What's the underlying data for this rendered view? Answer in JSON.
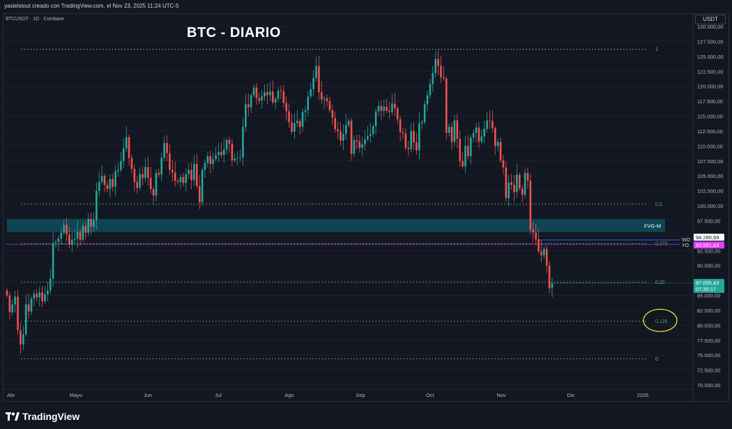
{
  "header": {
    "caption": "yasielstout creado con TradingView.com, el Nov 23, 2025 11:24 UTC-5"
  },
  "symbol": "BTCUSDT · 1D · Coinbase",
  "currency_button": "USDT",
  "brand": {
    "name": "TradingView",
    "icon": "tradingview-logo-icon"
  },
  "colors": {
    "up": "#26a69a",
    "down": "#ef5350",
    "fib": "#4caf50",
    "fvg": "#0f4c5c",
    "wo": "#2962ff",
    "yo": "#9c27b0"
  },
  "chart_data": {
    "type": "candlestick",
    "title": "BTC - DIARIO",
    "y_range": [
      70000,
      130000
    ],
    "y_ticks": [
      "70.000,00",
      "72.500,00",
      "75.000,00",
      "77.500,00",
      "80.000,00",
      "82.500,00",
      "85.000,00",
      "87.500,00",
      "90.000,00",
      "92.500,00",
      "95.000,00",
      "97.500,00",
      "100.000,00",
      "102.500,00",
      "105.000,00",
      "107.500,00",
      "110.000,00",
      "112.500,00",
      "115.000,00",
      "117.500,00",
      "120.000,00",
      "122.500,00",
      "125.000,00",
      "127.500,00",
      "130.000,00"
    ],
    "x_labels": [
      "Abr",
      "Mayo",
      "Jun",
      "Jul",
      "Ago",
      "Sep",
      "Oct",
      "Nov",
      "Dic",
      "2026"
    ],
    "fib_levels": [
      {
        "label": "1",
        "value": 126200
      },
      {
        "label": "0,5",
        "value": 100300
      },
      {
        "label": "0,375",
        "value": 93700
      },
      {
        "label": "0,25",
        "value": 87200
      },
      {
        "label": "0,125",
        "value": 80700
      },
      {
        "label": "0",
        "value": 74400
      }
    ],
    "zone": {
      "label": "FVG-M",
      "top": 97800,
      "bottom": 95600
    },
    "lines": [
      {
        "label": "WO",
        "value": 94280.99,
        "price": "94.280,99"
      },
      {
        "label": "YO",
        "value": 93551.63,
        "price": "93.551,63"
      }
    ],
    "last_price": {
      "value": 87055.43,
      "price": "87.055,43",
      "countdown": "07:35:17"
    },
    "closes": [
      85000,
      82200,
      83500,
      84800,
      79200,
      76800,
      78500,
      83500,
      82300,
      84500,
      85300,
      84700,
      85500,
      84000,
      85200,
      85800,
      87800,
      93800,
      94000,
      94500,
      95500,
      96800,
      95200,
      93500,
      94300,
      94500,
      95700,
      94300,
      96600,
      95500,
      97800,
      96500,
      97600,
      102500,
      104000,
      105000,
      103500,
      102800,
      104500,
      103200,
      105800,
      106000,
      107500,
      109600,
      111500,
      108000,
      106200,
      104000,
      103000,
      105300,
      104600,
      106500,
      104700,
      102800,
      101700,
      105500,
      105200,
      108000,
      110500,
      108800,
      106000,
      105600,
      104200,
      104000,
      104800,
      103800,
      105300,
      106000,
      104300,
      107000,
      103300,
      100600,
      106000,
      107200,
      108300,
      107000,
      107800,
      108500,
      109000,
      108500,
      109400,
      111000,
      110400,
      107600,
      107900,
      108000,
      108100,
      113200,
      117000,
      116500,
      118500,
      119800,
      118000,
      117600,
      118300,
      119000,
      118500,
      119100,
      117300,
      117900,
      119300,
      119200,
      117200,
      115800,
      114000,
      112400,
      113800,
      114200,
      113200,
      115700,
      116000,
      118300,
      119500,
      121400,
      123400,
      119000,
      117800,
      118000,
      117500,
      116000,
      114700,
      112800,
      112500,
      110900,
      112000,
      113500,
      114200,
      108700,
      111000,
      110800,
      109700,
      110300,
      111100,
      111700,
      112000,
      113300,
      115800,
      116700,
      115900,
      116600,
      115900,
      115700,
      117100,
      116300,
      114500,
      112300,
      112100,
      109700,
      109500,
      112500,
      110600,
      109300,
      113800,
      114000,
      117000,
      118500,
      120400,
      122200,
      124600,
      123400,
      121500,
      121300,
      112200,
      113200,
      110700,
      114300,
      111200,
      107500,
      106600,
      110000,
      108300,
      111400,
      112200,
      113100,
      110700,
      111600,
      112900,
      114300,
      114200,
      113000,
      110000,
      110700,
      107600,
      106400,
      101300,
      103900,
      103500,
      102300,
      105200,
      102900,
      101800,
      105500,
      104200,
      96000,
      95500,
      94400,
      92400,
      91700,
      92800,
      90000,
      86200,
      87055
    ]
  }
}
